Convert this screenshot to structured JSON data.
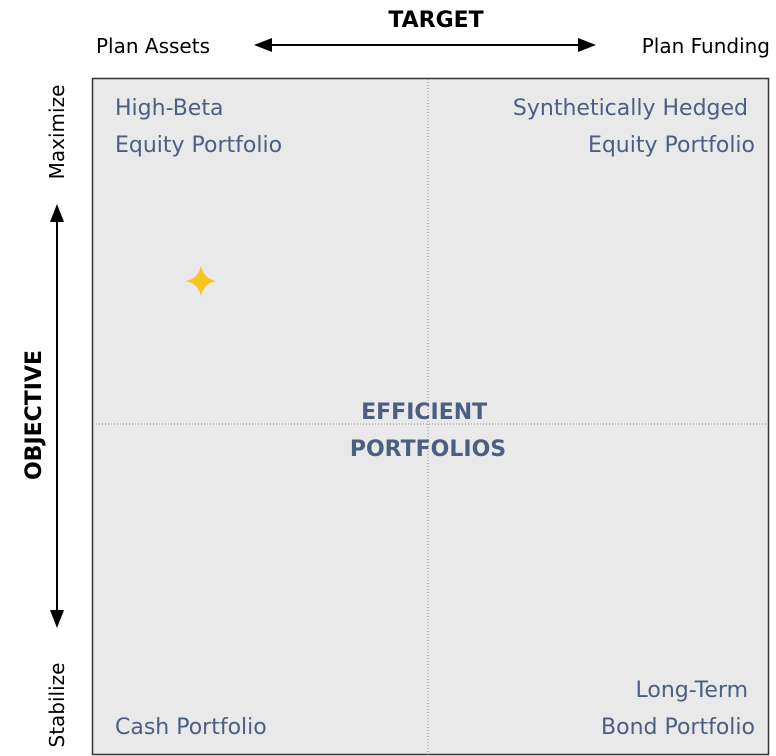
{
  "header": {
    "title": "TARGET",
    "left": "Plan Assets",
    "right": "Plan Funding"
  },
  "side": {
    "title": "OBJECTIVE",
    "top": "Maximize",
    "bottom": "Stabilize"
  },
  "quadrants": [
    {
      "lines": [
        "High-Beta",
        "Equity Portfolio"
      ]
    },
    {
      "lines": [
        "Synthetically Hedged",
        "Equity Portfolio"
      ]
    },
    {
      "lines": [
        "Cash Portfolio"
      ]
    },
    {
      "lines": [
        "Long-Term",
        "Bond Portfolio"
      ]
    }
  ],
  "center": {
    "lines": [
      "EFFICIENT",
      "PORTFOLIOS"
    ]
  }
}
